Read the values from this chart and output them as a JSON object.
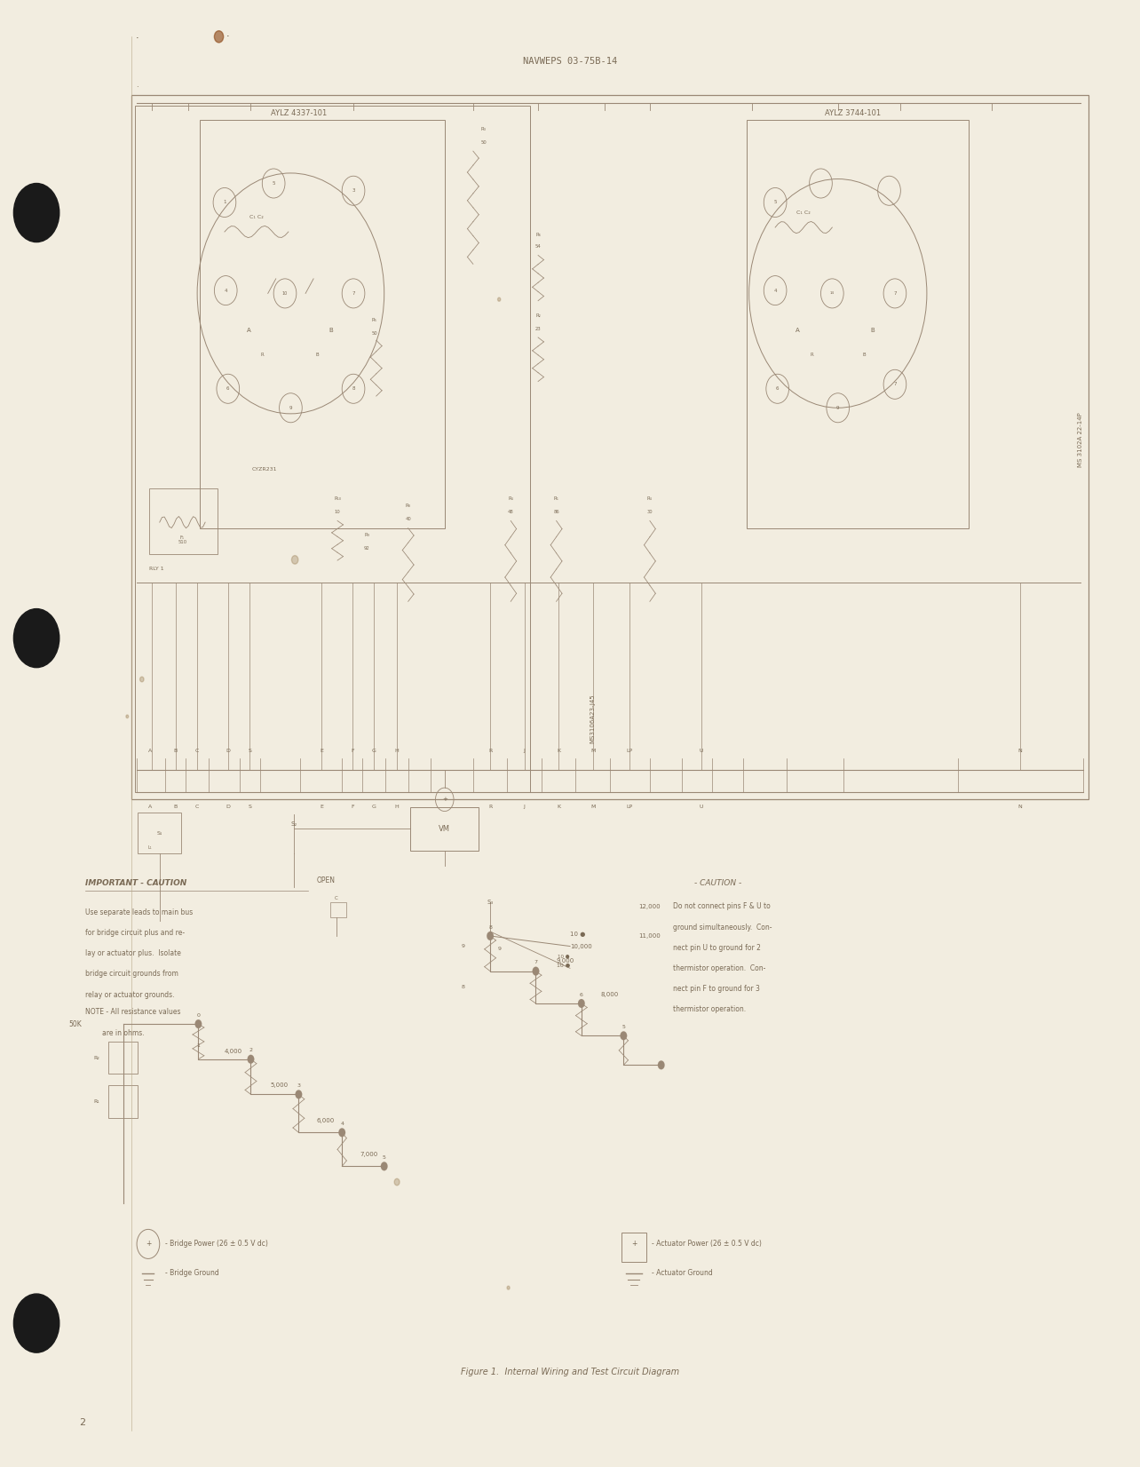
{
  "page_bg_color": "#f2ede0",
  "page_width": 12.84,
  "page_height": 16.52,
  "header_text": "NAVWEPS 03-75B-14",
  "footer_page_num": "2",
  "footer_caption": "Figure 1.  Internal Wiring and Test Circuit Diagram",
  "text_color": "#7a6a55",
  "line_color": "#9a8875",
  "title_aylz1": "AYLZ 4337-101",
  "title_aylz2": "AYLZ 3744-101",
  "ms_label1": "MS 3102A 22-14P",
  "ms_label2": "MS3106A23-J45",
  "important_caution_title": "IMPORTANT - CAUTION",
  "important_caution_lines": [
    "Use separate leads to main bus",
    "for bridge circuit plus and re-",
    "lay or actuator plus.  Isolate",
    "bridge circuit grounds from",
    "relay or actuator grounds."
  ],
  "note_lines": [
    "NOTE - All resistance values",
    "        are in ohms."
  ],
  "caution_title": "- CAUTION -",
  "caution_lines": [
    "Do not connect pins F & U to",
    "ground simultaneously.  Con-",
    "nect pin U to ground for 2",
    "thermistor operation.  Con-",
    "nect pin F to ground for 3",
    "thermistor operation."
  ],
  "open_label": "OPEN",
  "bridge_power_label": "- Bridge Power (26 ± 0.5 V dc)",
  "bridge_ground_label": "- Bridge Ground",
  "actuator_power_label": "- Actuator Power (26 ± 0.5 V dc)",
  "actuator_ground_label": "- Actuator Ground",
  "pin_labels": [
    "A",
    "B",
    "C",
    "",
    "D",
    "S",
    "",
    "E",
    "",
    "F",
    "G",
    "H",
    "",
    "R",
    "",
    "J",
    "",
    "K",
    "M",
    "L",
    "P",
    "",
    "U",
    "",
    "",
    "N"
  ]
}
